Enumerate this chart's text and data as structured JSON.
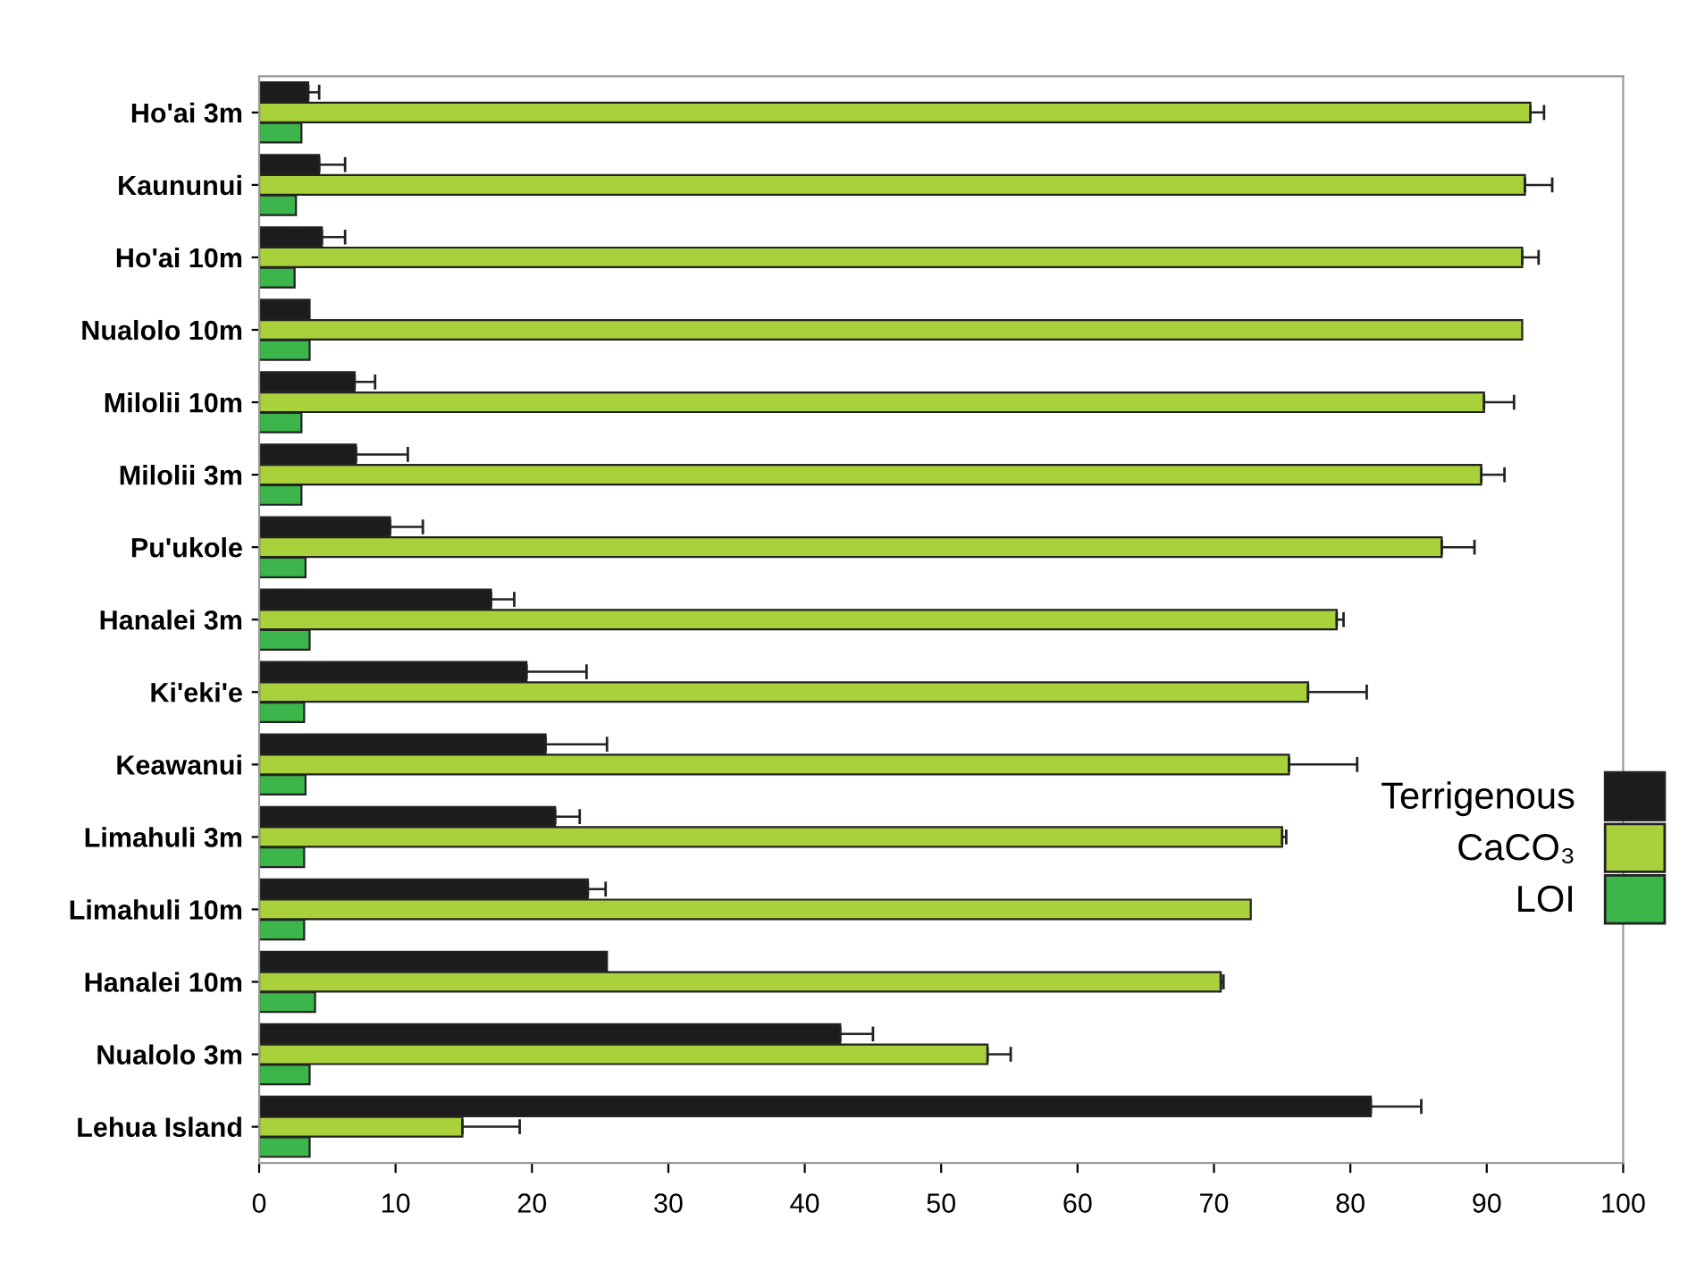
{
  "chart_data": {
    "type": "bar",
    "orientation": "horizontal",
    "categories": [
      "Ho'ai 3m",
      "Kaununui",
      "Ho'ai 10m",
      "Nualolo 10m",
      "Milolii 10m",
      "Milolii 3m",
      "Pu'ukole",
      "Hanalei 3m",
      "Ki'eki'e",
      "Keawanui",
      "Limahuli 3m",
      "Limahuli 10m",
      "Hanalei 10m",
      "Nualolo 3m",
      "Lehua Island"
    ],
    "series": [
      {
        "name": "Terrigenous",
        "color": "#1c1c1c",
        "values": [
          3.6,
          4.4,
          4.6,
          3.7,
          7.0,
          7.1,
          9.6,
          17.0,
          19.6,
          21.0,
          21.7,
          24.1,
          25.5,
          42.6,
          81.5
        ],
        "errors": [
          [
            3.6,
            4.4
          ],
          [
            4.4,
            6.3
          ],
          [
            4.6,
            6.3
          ],
          null,
          [
            7.0,
            8.5
          ],
          [
            7.1,
            10.9
          ],
          [
            9.6,
            12.0
          ],
          [
            17.0,
            18.7
          ],
          [
            19.6,
            24.0
          ],
          [
            21.0,
            25.5
          ],
          [
            21.7,
            23.5
          ],
          [
            24.1,
            25.4
          ],
          null,
          [
            42.6,
            45.0
          ],
          [
            81.5,
            85.2
          ]
        ]
      },
      {
        "name": "CaCO₃",
        "color": "#a8d13a",
        "values": [
          93.2,
          92.8,
          92.6,
          92.6,
          89.8,
          89.6,
          86.7,
          79.0,
          76.9,
          75.5,
          75.0,
          72.7,
          70.5,
          53.4,
          14.9
        ],
        "errors": [
          [
            93.2,
            94.2
          ],
          [
            92.8,
            94.8
          ],
          [
            92.6,
            93.8
          ],
          null,
          [
            89.8,
            92.0
          ],
          [
            89.6,
            91.3
          ],
          [
            86.7,
            89.1
          ],
          [
            79.0,
            79.5
          ],
          [
            76.9,
            81.2
          ],
          [
            75.5,
            80.5
          ],
          [
            75.0,
            75.3
          ],
          null,
          [
            70.5,
            70.7
          ],
          [
            53.4,
            55.1
          ],
          [
            14.9,
            19.1
          ]
        ]
      },
      {
        "name": "LOI",
        "color": "#3cb54a",
        "values": [
          3.1,
          2.7,
          2.6,
          3.7,
          3.1,
          3.1,
          3.4,
          3.7,
          3.3,
          3.4,
          3.3,
          3.3,
          4.1,
          3.7,
          3.7
        ]
      }
    ],
    "xlim": [
      0,
      100
    ],
    "xticks": [
      0,
      10,
      20,
      30,
      40,
      50,
      60,
      70,
      80,
      90,
      100
    ],
    "grid": false,
    "legend": "right"
  }
}
